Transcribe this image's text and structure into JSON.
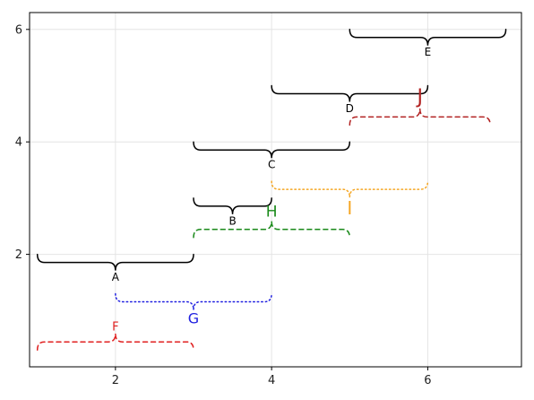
{
  "chart_data": {
    "type": "annotation",
    "title": "",
    "xlabel": "",
    "ylabel": "",
    "xlim": [
      0.9,
      7.2
    ],
    "ylim": [
      0,
      6.3
    ],
    "grid": true,
    "xticks": [
      2,
      4,
      6
    ],
    "yticks": [
      2,
      4,
      6
    ],
    "xtick_labels": [
      "2",
      "4",
      "6"
    ],
    "ytick_labels": [
      "2",
      "4",
      "6"
    ],
    "braces": [
      {
        "label": "A",
        "x0": 1,
        "x1": 3,
        "y": 2.0,
        "direction": "down",
        "color": "#000000",
        "style": "solid",
        "fontsize": 12
      },
      {
        "label": "B",
        "x0": 3,
        "x1": 4,
        "y": 3.0,
        "direction": "down",
        "color": "#000000",
        "style": "solid",
        "fontsize": 12
      },
      {
        "label": "C",
        "x0": 3,
        "x1": 5,
        "y": 4.0,
        "direction": "down",
        "color": "#000000",
        "style": "solid",
        "fontsize": 12
      },
      {
        "label": "D",
        "x0": 4,
        "x1": 6,
        "y": 5.0,
        "direction": "down",
        "color": "#000000",
        "style": "solid",
        "fontsize": 12
      },
      {
        "label": "E",
        "x0": 5,
        "x1": 7,
        "y": 6.0,
        "direction": "down",
        "color": "#000000",
        "style": "solid",
        "fontsize": 12
      },
      {
        "label": "F",
        "x0": 1,
        "x1": 3,
        "y": 0.3,
        "direction": "up",
        "color": "#e02020",
        "style": "dashed",
        "fontsize": 13
      },
      {
        "label": "G",
        "x0": 2,
        "x1": 4,
        "y": 1.3,
        "direction": "down",
        "color": "#2020e0",
        "style": "dotted",
        "fontsize": 16
      },
      {
        "label": "H",
        "x0": 3,
        "x1": 5,
        "y": 2.3,
        "direction": "up",
        "color": "#1a8a1a",
        "style": "dashed",
        "fontsize": 17
      },
      {
        "label": "I",
        "x0": 4,
        "x1": 6,
        "y": 3.3,
        "direction": "down",
        "color": "#f5a623",
        "style": "dotted",
        "fontsize": 20
      },
      {
        "label": "J",
        "x0": 5,
        "x1": 6.8,
        "y": 4.3,
        "direction": "up",
        "color": "#b22222",
        "style": "dashed",
        "fontsize": 22
      }
    ]
  }
}
